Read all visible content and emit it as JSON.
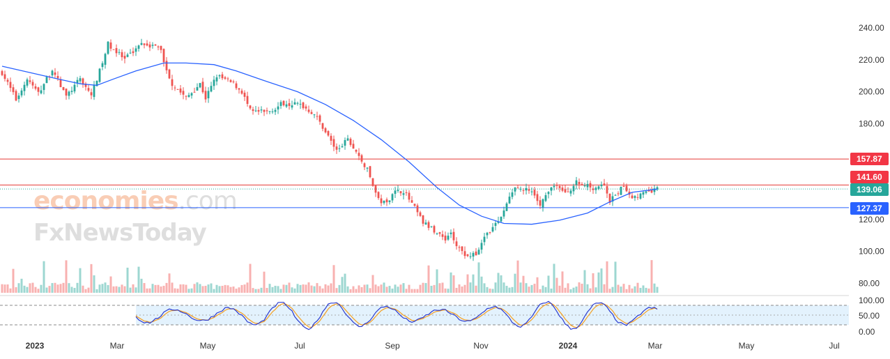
{
  "watermark": {
    "line1a": "economies",
    "line1b": ".com",
    "line2": "FxNewsToday"
  },
  "colors": {
    "up": "#26a69a",
    "down": "#ef5350",
    "ma": "#2962ff",
    "res_line": "#e53935",
    "sup_line": "#2962ff",
    "stoch_k": "#2c3ccf",
    "stoch_d": "#f59f1f",
    "stoch_band": "#e3f2fd"
  },
  "chart_data": [
    {
      "type": "candlestick",
      "title": "",
      "y_ticks": [
        "240.00",
        "220.00",
        "200.00",
        "180.00",
        "120.00",
        "100.00",
        "80.00"
      ],
      "x_ticks": [
        {
          "label": "2023",
          "bold": true
        },
        {
          "label": "Mar",
          "bold": false
        },
        {
          "label": "May",
          "bold": false
        },
        {
          "label": "Jul",
          "bold": false
        },
        {
          "label": "Sep",
          "bold": false
        },
        {
          "label": "Nov",
          "bold": false
        },
        {
          "label": "2024",
          "bold": true
        },
        {
          "label": "Mar",
          "bold": false
        },
        {
          "label": "May",
          "bold": false
        },
        {
          "label": "Jul",
          "bold": false
        }
      ],
      "price_labels": [
        {
          "label": "157.87",
          "value": 157.87,
          "color": "#f23645"
        },
        {
          "label": "141.60",
          "value": 141.6,
          "color": "#f23645"
        },
        {
          "label": "139.06",
          "value": 139.06,
          "color": "#26a69a"
        },
        {
          "label": "127.37",
          "value": 127.37,
          "color": "#2962ff"
        }
      ],
      "horizontal_lines": [
        {
          "value": 157.87,
          "color": "#e53935",
          "style": "solid"
        },
        {
          "value": 141.6,
          "color": "#e53935",
          "style": "solid"
        },
        {
          "value": 139.06,
          "color": "#26a69a",
          "style": "dotted"
        },
        {
          "value": 127.37,
          "color": "#2962ff",
          "style": "solid"
        }
      ],
      "close_anchors": [
        {
          "t": 0,
          "v": 212
        },
        {
          "t": 5,
          "v": 195
        },
        {
          "t": 9,
          "v": 208
        },
        {
          "t": 13,
          "v": 199
        },
        {
          "t": 18,
          "v": 214
        },
        {
          "t": 23,
          "v": 197
        },
        {
          "t": 28,
          "v": 208
        },
        {
          "t": 32,
          "v": 198
        },
        {
          "t": 36,
          "v": 218
        },
        {
          "t": 38,
          "v": 230
        },
        {
          "t": 44,
          "v": 220
        },
        {
          "t": 50,
          "v": 231
        },
        {
          "t": 57,
          "v": 227
        },
        {
          "t": 58,
          "v": 218
        },
        {
          "t": 61,
          "v": 205
        },
        {
          "t": 66,
          "v": 196
        },
        {
          "t": 71,
          "v": 205
        },
        {
          "t": 73,
          "v": 196
        },
        {
          "t": 77,
          "v": 210
        },
        {
          "t": 83,
          "v": 205
        },
        {
          "t": 86,
          "v": 200
        },
        {
          "t": 89,
          "v": 188
        },
        {
          "t": 95,
          "v": 187
        },
        {
          "t": 101,
          "v": 193
        },
        {
          "t": 107,
          "v": 192
        },
        {
          "t": 112,
          "v": 186
        },
        {
          "t": 115,
          "v": 178
        },
        {
          "t": 120,
          "v": 163
        },
        {
          "t": 124,
          "v": 170
        },
        {
          "t": 127,
          "v": 162
        },
        {
          "t": 131,
          "v": 151
        },
        {
          "t": 135,
          "v": 132
        },
        {
          "t": 138,
          "v": 130
        },
        {
          "t": 140,
          "v": 137
        },
        {
          "t": 144,
          "v": 138
        },
        {
          "t": 148,
          "v": 127
        },
        {
          "t": 151,
          "v": 118
        },
        {
          "t": 155,
          "v": 113
        },
        {
          "t": 159,
          "v": 108
        },
        {
          "t": 161,
          "v": 112
        },
        {
          "t": 163,
          "v": 103
        },
        {
          "t": 166,
          "v": 98
        },
        {
          "t": 170,
          "v": 98
        },
        {
          "t": 174,
          "v": 112
        },
        {
          "t": 178,
          "v": 118
        },
        {
          "t": 181,
          "v": 130
        },
        {
          "t": 184,
          "v": 140
        },
        {
          "t": 189,
          "v": 138
        },
        {
          "t": 193,
          "v": 130
        },
        {
          "t": 198,
          "v": 142
        },
        {
          "t": 202,
          "v": 136
        },
        {
          "t": 206,
          "v": 143
        },
        {
          "t": 212,
          "v": 140
        },
        {
          "t": 216,
          "v": 142
        },
        {
          "t": 218,
          "v": 131
        },
        {
          "t": 223,
          "v": 141
        },
        {
          "t": 226,
          "v": 134
        },
        {
          "t": 232,
          "v": 137
        },
        {
          "t": 235,
          "v": 139.06
        }
      ],
      "moving_average": [
        {
          "t": 0,
          "v": 216
        },
        {
          "t": 10,
          "v": 212
        },
        {
          "t": 20,
          "v": 208
        },
        {
          "t": 28,
          "v": 205
        },
        {
          "t": 34,
          "v": 204
        },
        {
          "t": 40,
          "v": 208
        },
        {
          "t": 48,
          "v": 213
        },
        {
          "t": 58,
          "v": 218
        },
        {
          "t": 66,
          "v": 218
        },
        {
          "t": 76,
          "v": 217
        },
        {
          "t": 84,
          "v": 213
        },
        {
          "t": 94,
          "v": 207
        },
        {
          "t": 106,
          "v": 200
        },
        {
          "t": 116,
          "v": 192
        },
        {
          "t": 126,
          "v": 182
        },
        {
          "t": 136,
          "v": 170
        },
        {
          "t": 146,
          "v": 156
        },
        {
          "t": 156,
          "v": 140
        },
        {
          "t": 164,
          "v": 129
        },
        {
          "t": 172,
          "v": 122
        },
        {
          "t": 180,
          "v": 117.5
        },
        {
          "t": 190,
          "v": 117
        },
        {
          "t": 200,
          "v": 119.5
        },
        {
          "t": 210,
          "v": 124
        },
        {
          "t": 218,
          "v": 131
        },
        {
          "t": 226,
          "v": 137
        },
        {
          "t": 235,
          "v": 139
        }
      ],
      "y_range": [
        73.6,
        240
      ]
    },
    {
      "type": "line",
      "title": "",
      "y_ticks": [
        "100.00",
        "50.00",
        "0.00"
      ],
      "levels": [
        80,
        20
      ],
      "y_range": [
        0,
        100
      ]
    }
  ]
}
